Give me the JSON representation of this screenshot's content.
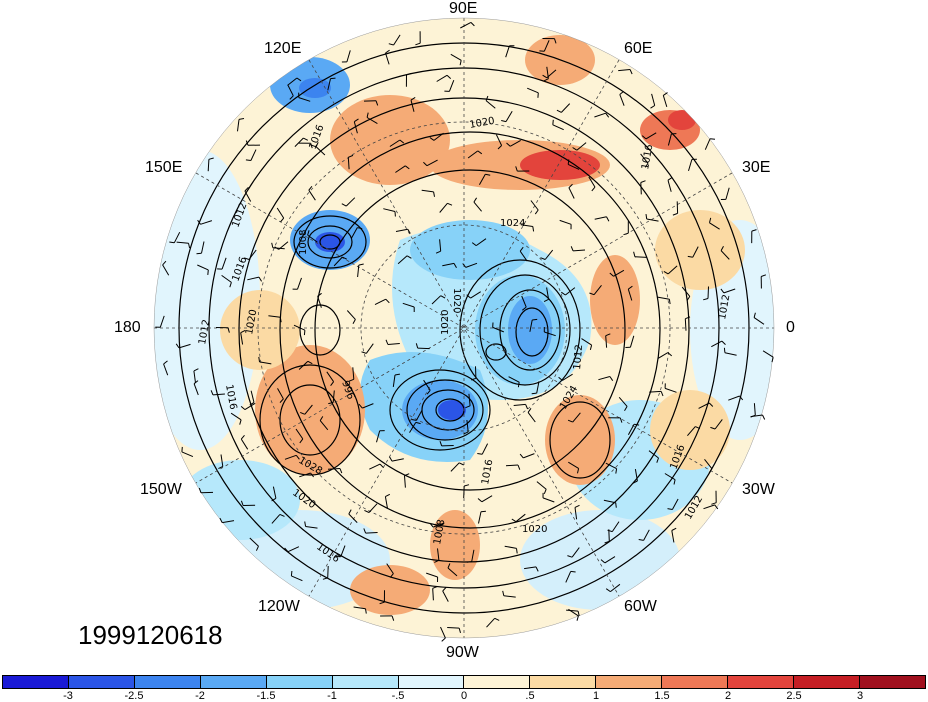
{
  "timestamp": "1999120618",
  "longitude_labels": {
    "deg90e": "90E",
    "deg60e": "60E",
    "deg30e": "30E",
    "deg0": "0",
    "deg30w": "30W",
    "deg60w": "60W",
    "deg90w": "90W",
    "deg120w": "120W",
    "deg150w": "150W",
    "deg180": "180",
    "deg150e": "150E",
    "deg120e": "120E"
  },
  "contour_labels": [
    "1020",
    "1016",
    "1024",
    "1012",
    "1016",
    "1020",
    "1016",
    "1012",
    "1028",
    "1020",
    "1016",
    "1024",
    "1016",
    "1012",
    "1020",
    "1008",
    "1012",
    "1016",
    "1020",
    "1020",
    "1016",
    "1012",
    "1008",
    "996"
  ],
  "colorbar": {
    "ticks": [
      "-3",
      "-2.5",
      "-2",
      "-1.5",
      "-1",
      "-.5",
      "0",
      ".5",
      "1",
      "1.5",
      "2",
      "2.5",
      "3"
    ],
    "colors": [
      "#1a1ad6",
      "#2b55e6",
      "#3c84ef",
      "#5aa9f4",
      "#87d2f8",
      "#b6e8fb",
      "#e1f5fd",
      "#fdf3d6",
      "#fbdaa4",
      "#f5ab76",
      "#ee7856",
      "#e3443c",
      "#c51e24",
      "#a0101e"
    ]
  }
}
